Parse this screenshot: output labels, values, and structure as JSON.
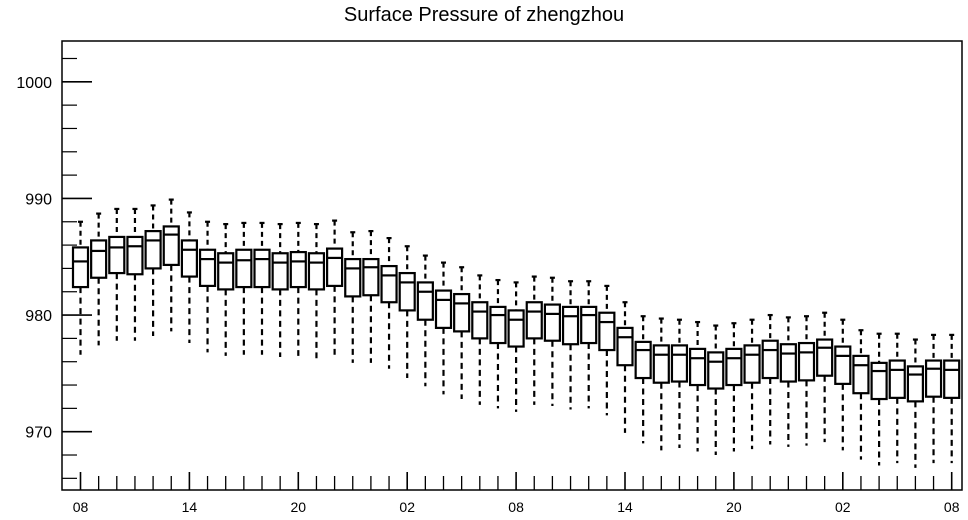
{
  "chart_data": {
    "type": "boxplot",
    "title": "Surface Pressure of zhengzhou",
    "xlabel": "",
    "ylabel": "",
    "ylim": [
      965,
      1003.5
    ],
    "yticks": [
      970,
      980,
      990,
      1000
    ],
    "xtick_labels": [
      "08",
      "14",
      "20",
      "02",
      "08",
      "14",
      "20",
      "02",
      "08"
    ],
    "xtick_label_steps": [
      0,
      6,
      12,
      18,
      24,
      30,
      36,
      42,
      48
    ],
    "grid": false,
    "boxes": [
      {
        "step": 0,
        "min": 976.6,
        "q1": 982.4,
        "median": 984.6,
        "q3": 985.8,
        "max": 988.0
      },
      {
        "step": 1,
        "min": 977.4,
        "q1": 983.2,
        "median": 985.5,
        "q3": 986.4,
        "max": 988.7
      },
      {
        "step": 2,
        "min": 977.8,
        "q1": 983.6,
        "median": 985.8,
        "q3": 986.7,
        "max": 989.1
      },
      {
        "step": 3,
        "min": 977.8,
        "q1": 983.5,
        "median": 985.9,
        "q3": 986.7,
        "max": 989.1
      },
      {
        "step": 4,
        "min": 978.2,
        "q1": 984.0,
        "median": 986.4,
        "q3": 987.2,
        "max": 989.4
      },
      {
        "step": 5,
        "min": 978.6,
        "q1": 984.3,
        "median": 986.9,
        "q3": 987.6,
        "max": 989.9
      },
      {
        "step": 6,
        "min": 977.6,
        "q1": 983.3,
        "median": 985.6,
        "q3": 986.4,
        "max": 988.8
      },
      {
        "step": 7,
        "min": 976.8,
        "q1": 982.5,
        "median": 984.8,
        "q3": 985.6,
        "max": 988.0
      },
      {
        "step": 8,
        "min": 976.5,
        "q1": 982.2,
        "median": 984.5,
        "q3": 985.3,
        "max": 987.8
      },
      {
        "step": 9,
        "min": 976.6,
        "q1": 982.4,
        "median": 984.7,
        "q3": 985.6,
        "max": 987.9
      },
      {
        "step": 10,
        "min": 976.6,
        "q1": 982.4,
        "median": 984.8,
        "q3": 985.6,
        "max": 987.9
      },
      {
        "step": 11,
        "min": 976.4,
        "q1": 982.2,
        "median": 984.5,
        "q3": 985.3,
        "max": 987.8
      },
      {
        "step": 12,
        "min": 976.5,
        "q1": 982.4,
        "median": 984.6,
        "q3": 985.4,
        "max": 987.9
      },
      {
        "step": 13,
        "min": 976.3,
        "q1": 982.2,
        "median": 984.5,
        "q3": 985.3,
        "max": 987.8
      },
      {
        "step": 14,
        "min": 976.6,
        "q1": 982.5,
        "median": 984.9,
        "q3": 985.7,
        "max": 988.1
      },
      {
        "step": 15,
        "min": 975.9,
        "q1": 981.6,
        "median": 984.0,
        "q3": 984.8,
        "max": 987.1
      },
      {
        "step": 16,
        "min": 975.9,
        "q1": 981.7,
        "median": 984.1,
        "q3": 984.8,
        "max": 987.2
      },
      {
        "step": 17,
        "min": 975.4,
        "q1": 981.1,
        "median": 983.4,
        "q3": 984.2,
        "max": 986.6
      },
      {
        "step": 18,
        "min": 974.6,
        "q1": 980.4,
        "median": 982.8,
        "q3": 983.6,
        "max": 985.9
      },
      {
        "step": 19,
        "min": 973.9,
        "q1": 979.6,
        "median": 982.0,
        "q3": 982.8,
        "max": 985.1
      },
      {
        "step": 20,
        "min": 973.2,
        "q1": 978.9,
        "median": 981.3,
        "q3": 982.1,
        "max": 984.5
      },
      {
        "step": 21,
        "min": 972.8,
        "q1": 978.6,
        "median": 981.0,
        "q3": 981.8,
        "max": 984.1
      },
      {
        "step": 22,
        "min": 972.3,
        "q1": 978.0,
        "median": 980.3,
        "q3": 981.1,
        "max": 983.4
      },
      {
        "step": 23,
        "min": 972.0,
        "q1": 977.6,
        "median": 980.0,
        "q3": 980.7,
        "max": 983.0
      },
      {
        "step": 24,
        "min": 971.7,
        "q1": 977.3,
        "median": 979.6,
        "q3": 980.4,
        "max": 982.8
      },
      {
        "step": 25,
        "min": 972.3,
        "q1": 978.0,
        "median": 980.3,
        "q3": 981.1,
        "max": 983.3
      },
      {
        "step": 26,
        "min": 972.2,
        "q1": 977.8,
        "median": 980.1,
        "q3": 980.9,
        "max": 983.2
      },
      {
        "step": 27,
        "min": 971.9,
        "q1": 977.5,
        "median": 979.9,
        "q3": 980.7,
        "max": 982.9
      },
      {
        "step": 28,
        "min": 972.0,
        "q1": 977.6,
        "median": 980.0,
        "q3": 980.7,
        "max": 982.9
      },
      {
        "step": 29,
        "min": 971.4,
        "q1": 977.0,
        "median": 979.4,
        "q3": 980.2,
        "max": 982.5
      },
      {
        "step": 30,
        "min": 969.9,
        "q1": 975.7,
        "median": 978.1,
        "q3": 978.9,
        "max": 981.1
      },
      {
        "step": 31,
        "min": 969.0,
        "q1": 974.6,
        "median": 977.0,
        "q3": 977.7,
        "max": 979.9
      },
      {
        "step": 32,
        "min": 968.4,
        "q1": 974.2,
        "median": 976.6,
        "q3": 977.4,
        "max": 979.7
      },
      {
        "step": 33,
        "min": 968.6,
        "q1": 974.3,
        "median": 976.6,
        "q3": 977.4,
        "max": 979.6
      },
      {
        "step": 34,
        "min": 968.3,
        "q1": 974.0,
        "median": 976.3,
        "q3": 977.1,
        "max": 979.4
      },
      {
        "step": 35,
        "min": 968.0,
        "q1": 973.7,
        "median": 976.0,
        "q3": 976.8,
        "max": 979.1
      },
      {
        "step": 36,
        "min": 968.3,
        "q1": 974.0,
        "median": 976.3,
        "q3": 977.1,
        "max": 979.3
      },
      {
        "step": 37,
        "min": 968.5,
        "q1": 974.2,
        "median": 976.6,
        "q3": 977.4,
        "max": 979.6
      },
      {
        "step": 38,
        "min": 968.9,
        "q1": 974.6,
        "median": 977.0,
        "q3": 977.8,
        "max": 980.0
      },
      {
        "step": 39,
        "min": 968.7,
        "q1": 974.3,
        "median": 976.7,
        "q3": 977.5,
        "max": 979.8
      },
      {
        "step": 40,
        "min": 968.8,
        "q1": 974.4,
        "median": 976.8,
        "q3": 977.6,
        "max": 979.9
      },
      {
        "step": 41,
        "min": 969.1,
        "q1": 974.8,
        "median": 977.2,
        "q3": 977.9,
        "max": 980.2
      },
      {
        "step": 42,
        "min": 968.4,
        "q1": 974.1,
        "median": 976.5,
        "q3": 977.3,
        "max": 979.6
      },
      {
        "step": 43,
        "min": 967.6,
        "q1": 973.3,
        "median": 975.7,
        "q3": 976.5,
        "max": 978.7
      },
      {
        "step": 44,
        "min": 967.1,
        "q1": 972.8,
        "median": 975.2,
        "q3": 975.9,
        "max": 978.4
      },
      {
        "step": 45,
        "min": 967.3,
        "q1": 972.9,
        "median": 975.3,
        "q3": 976.1,
        "max": 978.4
      },
      {
        "step": 46,
        "min": 966.9,
        "q1": 972.6,
        "median": 974.9,
        "q3": 975.6,
        "max": 977.9
      },
      {
        "step": 47,
        "min": 967.3,
        "q1": 973.0,
        "median": 975.4,
        "q3": 976.1,
        "max": 978.3
      },
      {
        "step": 48,
        "min": 967.3,
        "q1": 972.9,
        "median": 975.3,
        "q3": 976.1,
        "max": 978.3
      }
    ]
  }
}
